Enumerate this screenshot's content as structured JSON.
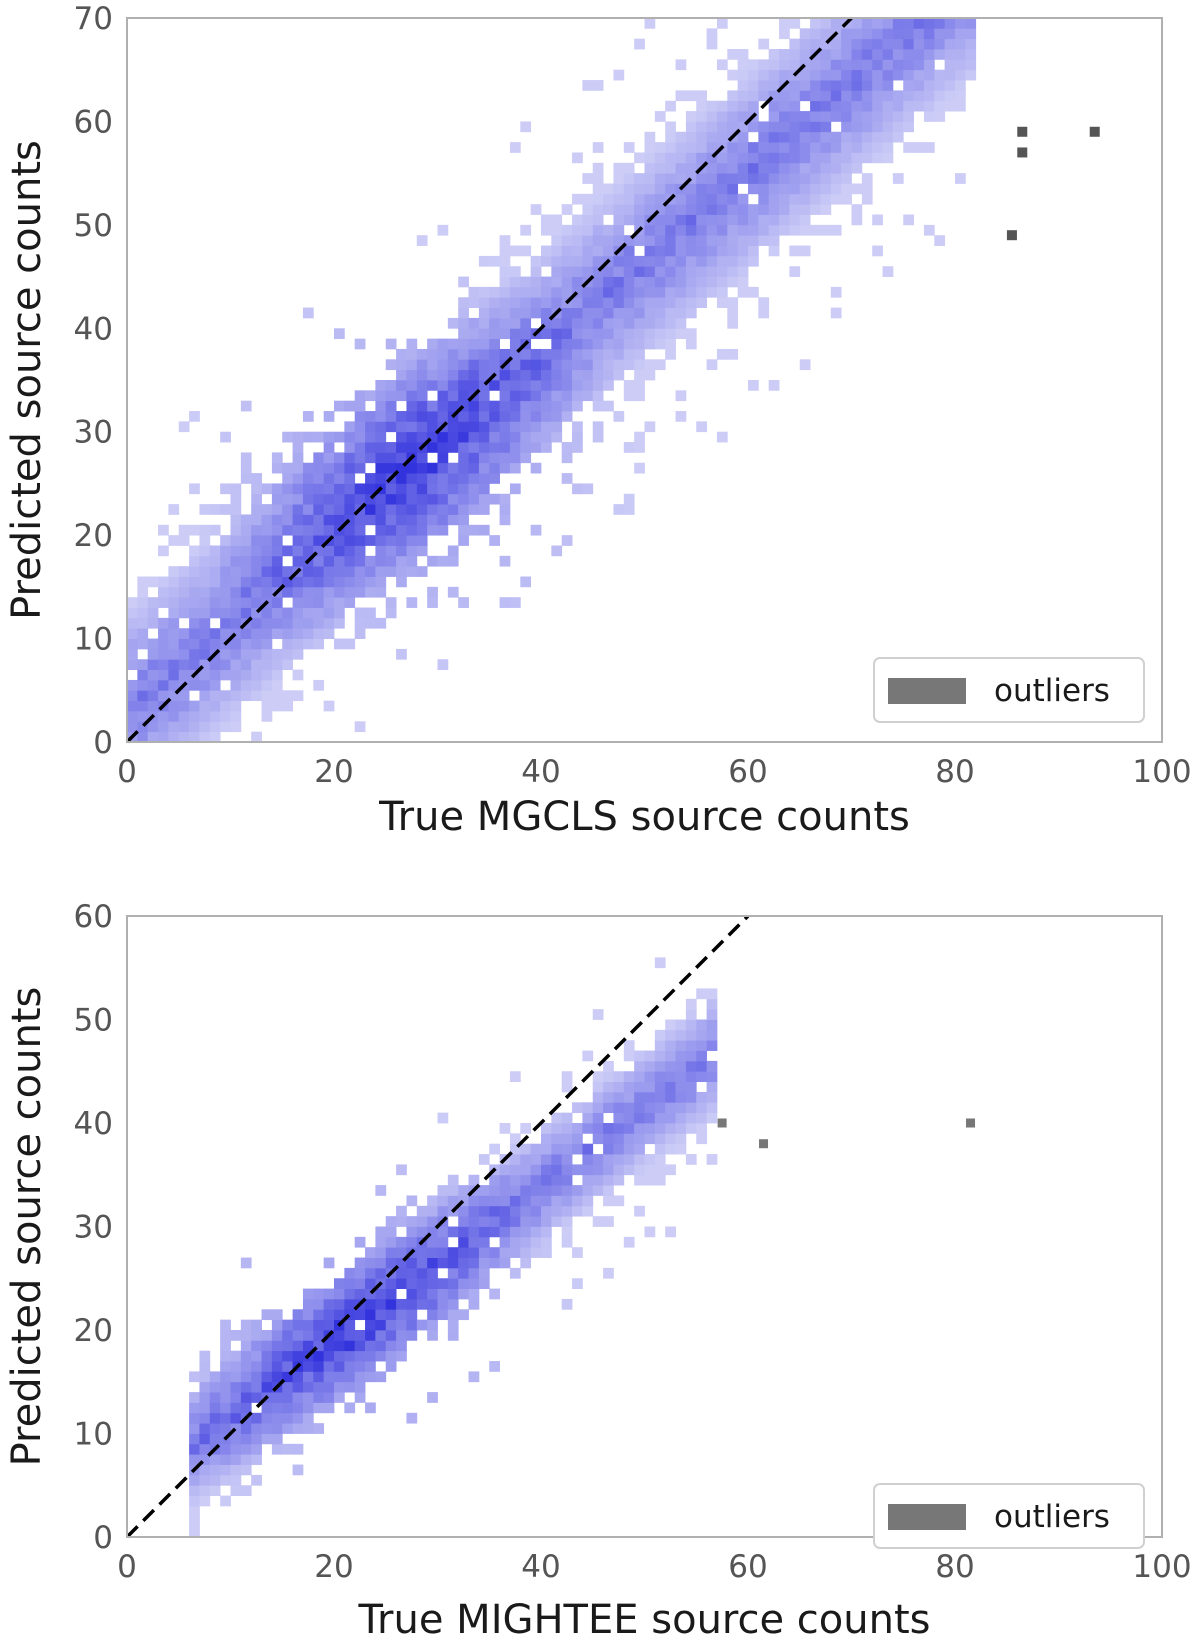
{
  "chart_data": [
    {
      "type": "heatmap",
      "subtype": "2d-histogram",
      "xlabel": "True MGCLS source counts",
      "ylabel": "Predicted source counts",
      "xlim": [
        0,
        100
      ],
      "ylim": [
        0,
        70
      ],
      "xticks": [
        0,
        20,
        40,
        60,
        80,
        100
      ],
      "yticks": [
        0,
        10,
        20,
        30,
        40,
        50,
        60,
        70
      ],
      "grid": false,
      "colormap": [
        "#ccccf7",
        "#3333dd"
      ],
      "reference_line": {
        "style": "dashed",
        "color": "#000000",
        "slope": 1,
        "intercept": 0
      },
      "density_band": {
        "x_range": [
          0,
          82
        ],
        "slope": 0.87,
        "intercept": 3,
        "spread": 10,
        "peak": [
          27,
          26
        ]
      },
      "outlier_series": {
        "name": "outliers",
        "color": "#555555",
        "points": [
          [
            86.5,
            59
          ],
          [
            86.5,
            57
          ],
          [
            85.5,
            49
          ],
          [
            93.5,
            59
          ]
        ]
      },
      "legend": {
        "entries": [
          "outliers"
        ],
        "position": "lower-right"
      }
    },
    {
      "type": "heatmap",
      "subtype": "2d-histogram",
      "xlabel": "True MIGHTEE source counts",
      "ylabel": "Predicted source counts",
      "xlim": [
        0,
        100
      ],
      "ylim": [
        0,
        60
      ],
      "xticks": [
        0,
        20,
        40,
        60,
        80,
        100
      ],
      "yticks": [
        0,
        10,
        20,
        30,
        40,
        50,
        60
      ],
      "grid": false,
      "colormap": [
        "#ccccf7",
        "#3333dd"
      ],
      "reference_line": {
        "style": "dashed",
        "color": "#000000",
        "slope": 1,
        "intercept": 0
      },
      "density_band": {
        "x_range": [
          6,
          57
        ],
        "slope": 0.75,
        "intercept": 4,
        "spread": 6,
        "peak": [
          22,
          20
        ]
      },
      "outlier_series": {
        "name": "outliers",
        "color": "#777777",
        "points": [
          [
            57.5,
            40
          ],
          [
            61.5,
            38
          ],
          [
            81.5,
            40
          ]
        ]
      },
      "legend": {
        "entries": [
          "outliers"
        ],
        "position": "lower-right"
      }
    }
  ]
}
